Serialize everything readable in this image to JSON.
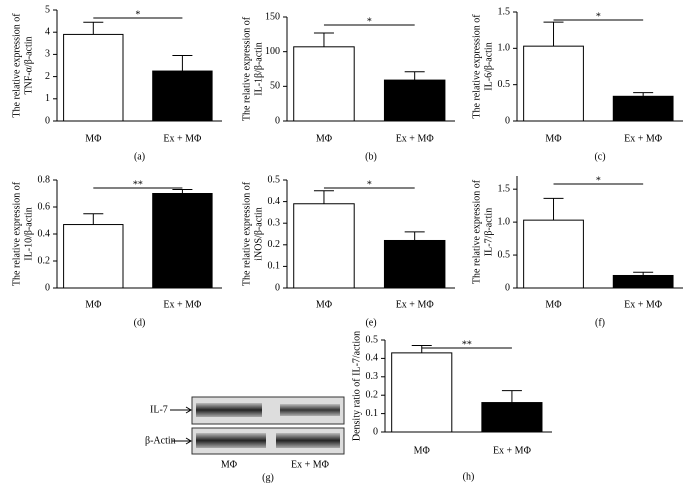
{
  "chart_data": [
    {
      "type": "bar",
      "panel": "(a)",
      "ylabel": [
        "The relative expression of",
        "TNF-α/β-actin"
      ],
      "categories": [
        "MΦ",
        "Ex + MΦ"
      ],
      "values": [
        3.9,
        2.25
      ],
      "errors": [
        0.55,
        0.7
      ],
      "colors": [
        "#ffffff",
        "#000000"
      ],
      "ylim": [
        0,
        5
      ],
      "yticks": [
        0,
        1,
        2,
        3,
        4,
        5
      ],
      "significance": "*"
    },
    {
      "type": "bar",
      "panel": "(b)",
      "ylabel": [
        "The relative expression of",
        "IL-1β/β-actin"
      ],
      "categories": [
        "MΦ",
        "Ex + MΦ"
      ],
      "values": [
        107,
        59
      ],
      "errors": [
        20,
        12
      ],
      "colors": [
        "#ffffff",
        "#000000"
      ],
      "ylim": [
        0,
        150
      ],
      "yticks": [
        0,
        50,
        100,
        150
      ],
      "significance": "*"
    },
    {
      "type": "bar",
      "panel": "(c)",
      "ylabel": [
        "The relative expression of",
        "IL-6/β-actin"
      ],
      "categories": [
        "MΦ",
        "Ex + MΦ"
      ],
      "values": [
        1.03,
        0.34
      ],
      "errors": [
        0.33,
        0.05
      ],
      "colors": [
        "#ffffff",
        "#000000"
      ],
      "ylim": [
        0,
        1.5
      ],
      "yticks": [
        0,
        0.5,
        {
          "value": 1,
          "label": "1.0"
        },
        1.5
      ],
      "significance": "*"
    },
    {
      "type": "bar",
      "panel": "(d)",
      "ylabel": [
        "The relative expression of",
        "IL-10/β-actin"
      ],
      "categories": [
        "MΦ",
        "Ex + MΦ"
      ],
      "values": [
        0.47,
        0.7
      ],
      "errors": [
        0.08,
        0.03
      ],
      "colors": [
        "#ffffff",
        "#000000"
      ],
      "ylim": [
        0,
        0.8
      ],
      "yticks": [
        0,
        0.2,
        0.4,
        0.6,
        0.8
      ],
      "significance": "**"
    },
    {
      "type": "bar",
      "panel": "(e)",
      "ylabel": [
        "The relative expression of",
        "iNOS/β-actin"
      ],
      "categories": [
        "MΦ",
        "Ex + MΦ"
      ],
      "values": [
        0.39,
        0.22
      ],
      "errors": [
        0.06,
        0.04
      ],
      "colors": [
        "#ffffff",
        "#000000"
      ],
      "ylim": [
        0,
        0.5
      ],
      "yticks": [
        0,
        0.1,
        0.2,
        0.3,
        0.4,
        0.5
      ],
      "significance": "*"
    },
    {
      "type": "bar",
      "panel": "(f)",
      "ylabel": [
        "The relative expression of",
        "IL-7/β-actin"
      ],
      "categories": [
        "MΦ",
        "Ex + MΦ"
      ],
      "values": [
        1.03,
        0.19
      ],
      "errors": [
        0.33,
        0.05
      ],
      "colors": [
        "#ffffff",
        "#000000"
      ],
      "ylim": [
        0,
        1.7
      ],
      "yticks": [
        0,
        0.5,
        {
          "value": 1,
          "label": "1.0"
        },
        1.5
      ],
      "significance": "*"
    },
    {
      "type": "bar",
      "panel": "(h)",
      "ylabel": [
        "Density ratio of IL-7/action"
      ],
      "categories": [
        "MΦ",
        "Ex + MΦ"
      ],
      "values": [
        0.43,
        0.16
      ],
      "errors": [
        0.04,
        0.065
      ],
      "colors": [
        "#ffffff",
        "#000000"
      ],
      "ylim": [
        0,
        0.5
      ],
      "yticks": [
        0,
        0.1,
        0.2,
        0.3,
        0.4,
        0.5
      ],
      "significance": "**"
    }
  ],
  "blot": {
    "panel": "(g)",
    "rows": [
      "IL-7",
      "β-Actin"
    ],
    "lanes": [
      "MΦ",
      "Ex + MΦ"
    ]
  }
}
